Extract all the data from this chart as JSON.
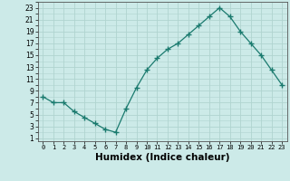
{
  "x": [
    0,
    1,
    2,
    3,
    4,
    5,
    6,
    7,
    8,
    9,
    10,
    11,
    12,
    13,
    14,
    15,
    16,
    17,
    18,
    19,
    20,
    21,
    22,
    23
  ],
  "y": [
    8,
    7,
    7,
    5.5,
    4.5,
    3.5,
    2.5,
    2,
    6,
    9.5,
    12.5,
    14.5,
    16,
    17,
    18.5,
    20,
    21.5,
    23,
    21.5,
    19,
    17,
    15,
    12.5,
    10
  ],
  "line_color": "#1a7a6e",
  "marker": "+",
  "marker_size": 4,
  "bg_color": "#cceae8",
  "grid_color": "#b0d4d0",
  "xlabel": "Humidex (Indice chaleur)",
  "xlabel_fontsize": 7.5,
  "ytick_labels": [
    "1",
    "3",
    "5",
    "7",
    "9",
    "11",
    "13",
    "15",
    "17",
    "19",
    "21",
    "23"
  ],
  "ytick_values": [
    1,
    3,
    5,
    7,
    9,
    11,
    13,
    15,
    17,
    19,
    21,
    23
  ],
  "xtick_labels": [
    "0",
    "1",
    "2",
    "3",
    "4",
    "5",
    "6",
    "7",
    "8",
    "9",
    "10",
    "11",
    "12",
    "13",
    "14",
    "15",
    "16",
    "17",
    "18",
    "19",
    "20",
    "21",
    "22",
    "23"
  ],
  "xlim": [
    -0.5,
    23.5
  ],
  "ylim": [
    0.5,
    24
  ]
}
